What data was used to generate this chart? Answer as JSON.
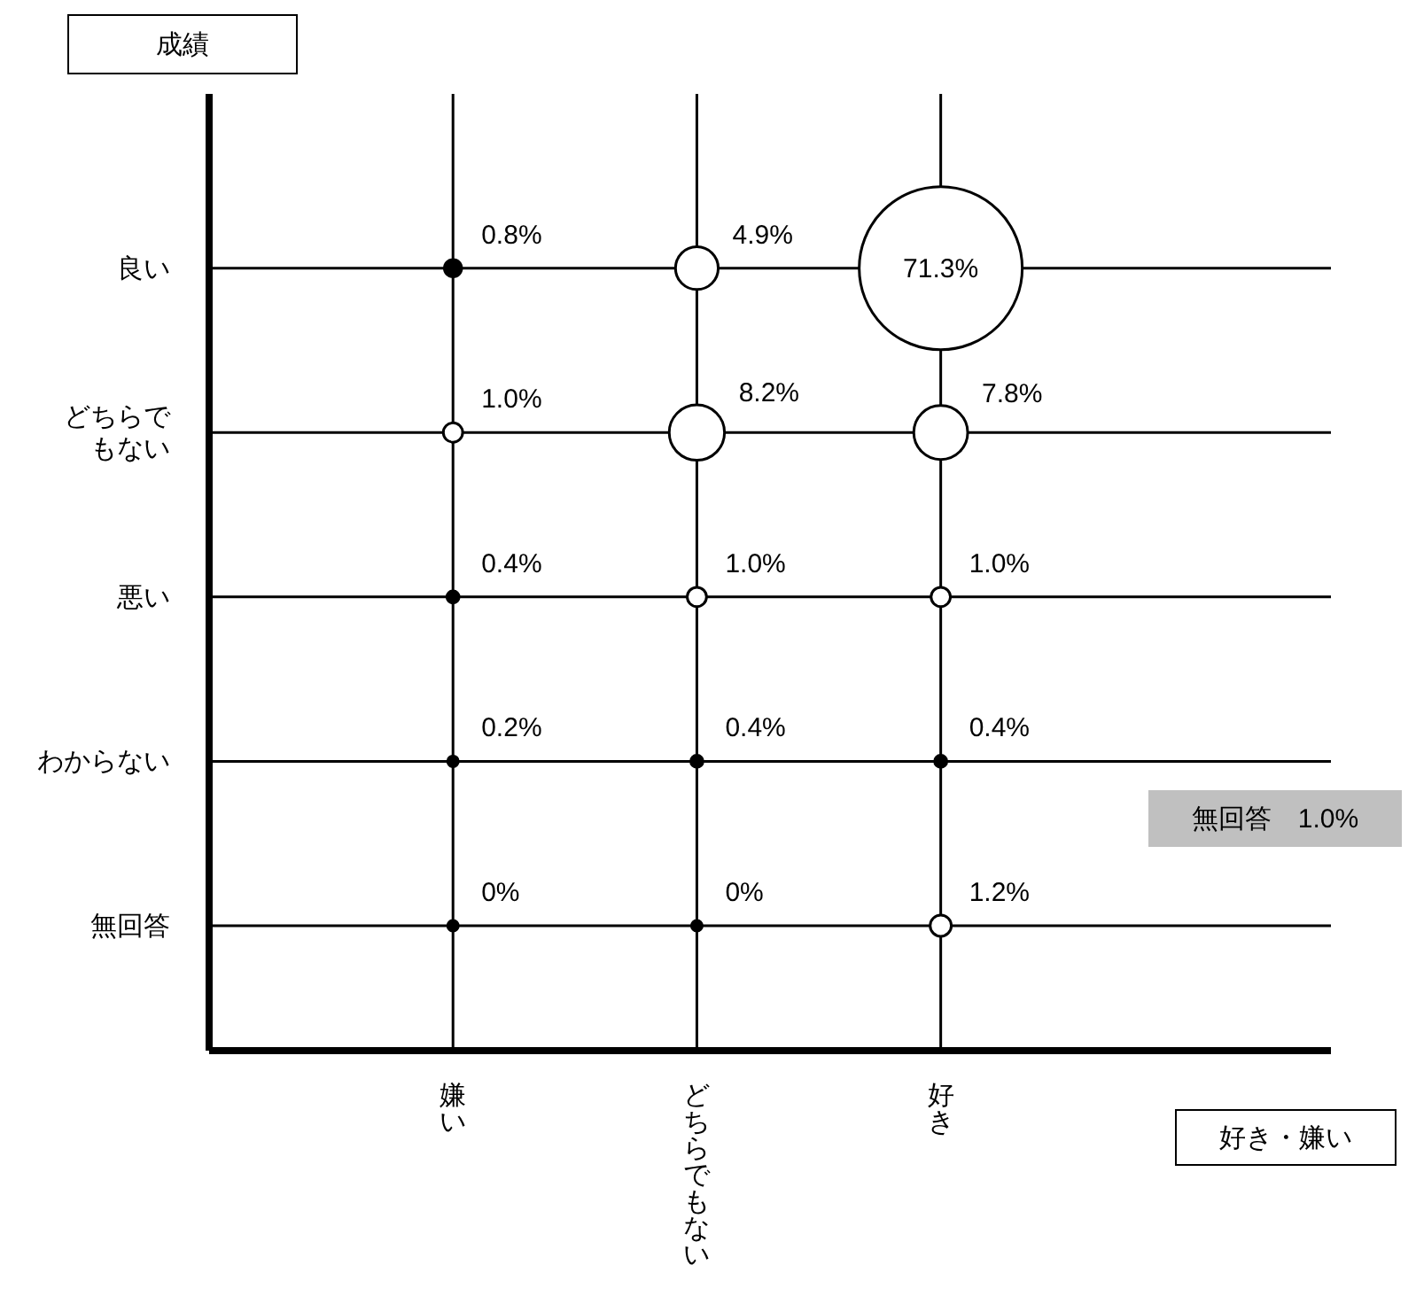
{
  "chart_data": {
    "type": "heatmap",
    "ylabel": "成績",
    "categories": [
      "嫌い",
      "どちらでもない",
      "好き"
    ],
    "y_categories": [
      "良い",
      "どちらでもない",
      "悪い",
      "わからない",
      "無回答"
    ],
    "cells": [
      [
        0.8,
        4.9,
        71.3
      ],
      [
        1.0,
        8.2,
        7.8
      ],
      [
        0.4,
        1.0,
        1.0
      ],
      [
        0.2,
        0.4,
        0.4
      ],
      [
        0,
        0,
        1.2
      ]
    ],
    "cell_labels": [
      [
        "0.8%",
        "4.9%",
        "71.3%"
      ],
      [
        "1.0%",
        "8.2%",
        "7.8%"
      ],
      [
        "0.4%",
        "1.0%",
        "1.0%"
      ],
      [
        "0.2%",
        "0.4%",
        "0.4%"
      ],
      [
        "0%",
        "0%",
        "1.2%"
      ]
    ],
    "data_labels": true,
    "grid": true,
    "annotations": [
      "好き・嫌い",
      "無回答　1.0%"
    ]
  }
}
